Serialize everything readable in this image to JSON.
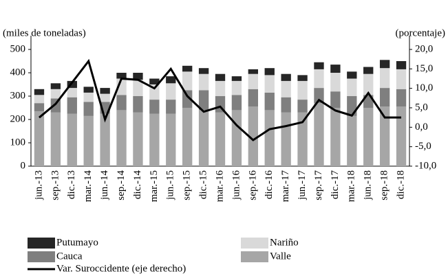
{
  "chart_data": {
    "type": "bar",
    "y_label": "(miles  de toneladas)",
    "y2_label": "(porcentaje)",
    "categories": [
      "jun.-13",
      "sep.-13",
      "dic.-13",
      "mar.-14",
      "jun.-14",
      "sep.-14",
      "dic.-14",
      "mar.-15",
      "jun.-15",
      "sep.-15",
      "dic.-15",
      "mar.-16",
      "jun.-16",
      "sep.-16",
      "dic.-16",
      "mar.-17",
      "jun.-17",
      "sep.-17",
      "dic.-17",
      "mar.-18",
      "jun.-18",
      "sep.-18",
      "dic.-18"
    ],
    "ylim": [
      0,
      500
    ],
    "yticks": [
      0,
      100,
      200,
      300,
      400,
      500
    ],
    "y2lim": [
      -10,
      20
    ],
    "y2ticks": [
      {
        "value": -10,
        "label": "-10,0"
      },
      {
        "value": -5,
        "label": "-5,0"
      },
      {
        "value": 0,
        "label": "0,0"
      },
      {
        "value": 5,
        "label": "5,0"
      },
      {
        "value": 10,
        "label": "10,0"
      },
      {
        "value": 15,
        "label": "15,0"
      },
      {
        "value": 20,
        "label": "20,0"
      }
    ],
    "series": [
      {
        "name": "Valle",
        "color": "#a6a6a6",
        "values": [
          235,
          230,
          225,
          215,
          225,
          240,
          230,
          225,
          225,
          250,
          240,
          230,
          240,
          255,
          240,
          230,
          230,
          270,
          250,
          215,
          250,
          255,
          255
        ]
      },
      {
        "name": "Cauca",
        "color": "#7f7f7f",
        "values": [
          35,
          60,
          70,
          60,
          50,
          65,
          70,
          60,
          60,
          75,
          85,
          70,
          65,
          75,
          75,
          65,
          55,
          65,
          70,
          85,
          55,
          80,
          75
        ]
      },
      {
        "name": "Nariño",
        "color": "#d9d9d9",
        "values": [
          35,
          40,
          40,
          40,
          35,
          70,
          70,
          65,
          70,
          80,
          70,
          65,
          60,
          65,
          75,
          70,
          80,
          80,
          80,
          75,
          90,
          85,
          85
        ]
      },
      {
        "name": "Putumayo",
        "color": "#262626",
        "values": [
          25,
          25,
          30,
          25,
          25,
          25,
          30,
          25,
          30,
          25,
          25,
          30,
          20,
          20,
          30,
          30,
          25,
          30,
          35,
          30,
          30,
          35,
          35
        ]
      },
      {
        "name": "Var. Suroccidente (eje derecho)",
        "color": "#000000",
        "type": "line",
        "axis": "y2",
        "values": [
          2.5,
          6,
          11.5,
          17,
          2,
          12.5,
          12.2,
          10,
          15,
          8,
          4,
          5.3,
          0.5,
          -3.3,
          -0.5,
          0.3,
          1.3,
          7,
          4.3,
          3,
          8.8,
          2.5,
          2.5
        ]
      }
    ]
  }
}
